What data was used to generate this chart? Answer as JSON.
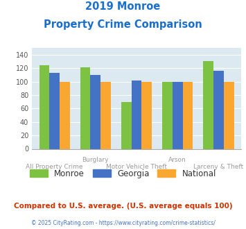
{
  "title_line1": "2019 Monroe",
  "title_line2": "Property Crime Comparison",
  "title_color": "#1a6fcc",
  "monroe": [
    124,
    121,
    70,
    100,
    131
  ],
  "georgia": [
    113,
    110,
    102,
    100,
    116
  ],
  "national": [
    100,
    100,
    100,
    100,
    100
  ],
  "monroe_color": "#7dc242",
  "georgia_color": "#4472c4",
  "national_color": "#faa732",
  "ylim": [
    0,
    150
  ],
  "yticks": [
    0,
    20,
    40,
    60,
    80,
    100,
    120,
    140
  ],
  "plot_bg": "#dce9f0",
  "fig_bg": "#ffffff",
  "legend_labels": [
    "Monroe",
    "Georgia",
    "National"
  ],
  "top_xlabels": {
    "1": "Burglary",
    "3": "Arson"
  },
  "bottom_xlabels": {
    "0": "All Property Crime",
    "2": "Motor Vehicle Theft",
    "4": "Larceny & Theft"
  },
  "footer_text": "Compared to U.S. average. (U.S. average equals 100)",
  "footer_color": "#cc3300",
  "credit_text": "© 2025 CityRating.com - https://www.cityrating.com/crime-statistics/",
  "credit_color": "#4472c4",
  "bar_width": 0.25
}
